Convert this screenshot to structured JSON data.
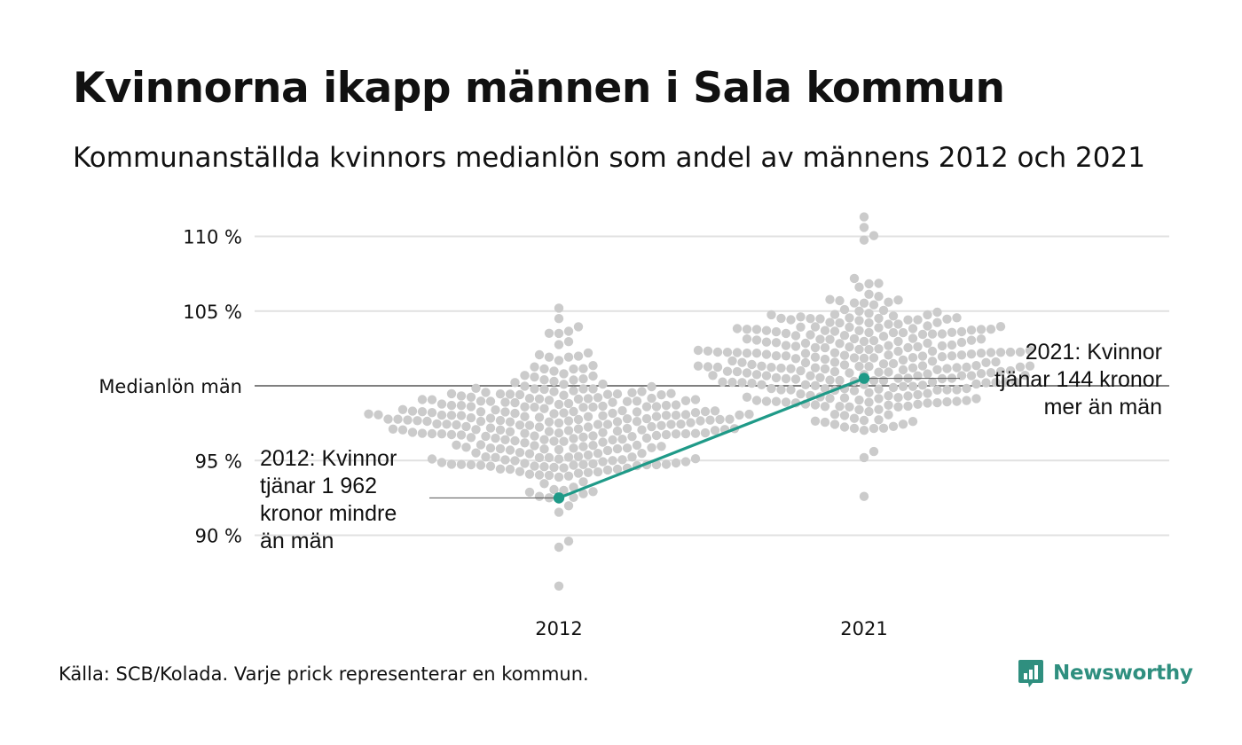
{
  "title": "Kvinnorna ikapp männen i Sala kommun",
  "subtitle": "Kommunanställda kvinnors medianlön som andel av männens 2012 och 2021",
  "source": "Källa: SCB/Kolada. Varje prick representerar en kommun.",
  "brand": "Newsworthy",
  "colors": {
    "highlight": "#1f9a88",
    "dots": "#cbcbcb",
    "grid": "#e1e1e1",
    "reference": "#333333"
  },
  "chart_data": {
    "type": "scatter",
    "subtype": "beeswarm",
    "categories": [
      "2012",
      "2021"
    ],
    "y_ticks": [
      {
        "value": 110,
        "label": "110 %"
      },
      {
        "value": 105,
        "label": "105 %"
      },
      {
        "value": 100,
        "label": "Medianlön män"
      },
      {
        "value": 95,
        "label": "95 %"
      },
      {
        "value": 90,
        "label": "90 %"
      }
    ],
    "ylim": [
      87,
      111.5
    ],
    "reference_line": 100,
    "highlight": {
      "name": "Sala",
      "points": [
        {
          "x": "2012",
          "y": 92.5
        },
        {
          "x": "2021",
          "y": 100.5
        }
      ]
    },
    "annotations": [
      {
        "category": "2012",
        "lines": [
          "2012: Kvinnor",
          "tjänar 1 962",
          "kronor mindre",
          "än män"
        ]
      },
      {
        "category": "2021",
        "lines": [
          "2021: Kvinnor",
          "tjänar 144 kronor",
          "mer än män"
        ]
      }
    ],
    "distribution_summary": {
      "2012": {
        "min": 86.6,
        "max": 105.2,
        "center": 97.5
      },
      "2021": {
        "min": 92.6,
        "max": 111.3,
        "center": 101.5
      }
    }
  }
}
